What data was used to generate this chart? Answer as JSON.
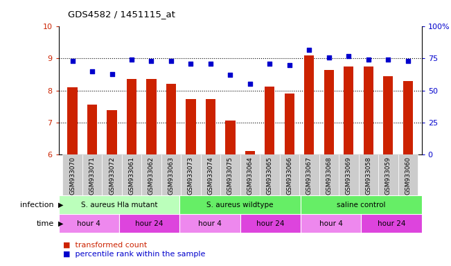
{
  "title": "GDS4582 / 1451115_at",
  "samples": [
    "GSM933070",
    "GSM933071",
    "GSM933072",
    "GSM933061",
    "GSM933062",
    "GSM933063",
    "GSM933073",
    "GSM933074",
    "GSM933075",
    "GSM933064",
    "GSM933065",
    "GSM933066",
    "GSM933067",
    "GSM933068",
    "GSM933069",
    "GSM933058",
    "GSM933059",
    "GSM933060"
  ],
  "bar_values": [
    8.1,
    7.55,
    7.38,
    8.35,
    8.35,
    8.2,
    7.73,
    7.73,
    7.05,
    6.1,
    8.12,
    7.9,
    9.1,
    8.65,
    8.75,
    8.75,
    8.45,
    8.3
  ],
  "dot_values_pct": [
    73,
    65,
    63,
    74,
    73,
    73,
    71,
    71,
    62,
    55,
    71,
    70,
    82,
    76,
    77,
    74,
    74,
    73
  ],
  "ylim_left": [
    6,
    10
  ],
  "ylim_right": [
    0,
    100
  ],
  "yticks_left": [
    6,
    7,
    8,
    9,
    10
  ],
  "yticks_right": [
    0,
    25,
    50,
    75,
    100
  ],
  "ytick_labels_right": [
    "0",
    "25",
    "50",
    "75",
    "100%"
  ],
  "bar_color": "#cc2200",
  "dot_color": "#0000cc",
  "infection_groups": [
    {
      "label": "S. aureus Hla mutant",
      "start": 0,
      "end": 6,
      "color": "#bbffbb"
    },
    {
      "label": "S. aureus wildtype",
      "start": 6,
      "end": 12,
      "color": "#66ee66"
    },
    {
      "label": "saline control",
      "start": 12,
      "end": 18,
      "color": "#66ee66"
    }
  ],
  "time_groups": [
    {
      "label": "hour 4",
      "start": 0,
      "end": 3,
      "color": "#ee88ee"
    },
    {
      "label": "hour 24",
      "start": 3,
      "end": 6,
      "color": "#dd44dd"
    },
    {
      "label": "hour 4",
      "start": 6,
      "end": 9,
      "color": "#ee88ee"
    },
    {
      "label": "hour 24",
      "start": 9,
      "end": 12,
      "color": "#dd44dd"
    },
    {
      "label": "hour 4",
      "start": 12,
      "end": 15,
      "color": "#ee88ee"
    },
    {
      "label": "hour 24",
      "start": 15,
      "end": 18,
      "color": "#dd44dd"
    }
  ],
  "infection_label": "infection",
  "time_label": "time",
  "legend_bar_label": "transformed count",
  "legend_dot_label": "percentile rank within the sample"
}
